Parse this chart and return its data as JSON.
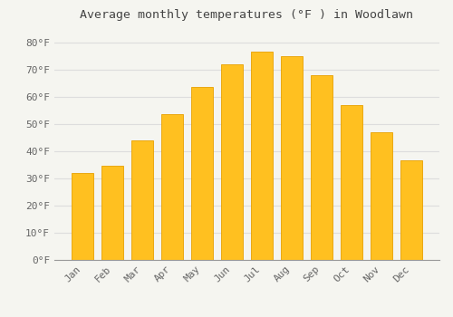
{
  "title": "Average monthly temperatures (°F ) in Woodlawn",
  "months": [
    "Jan",
    "Feb",
    "Mar",
    "Apr",
    "May",
    "Jun",
    "Jul",
    "Aug",
    "Sep",
    "Oct",
    "Nov",
    "Dec"
  ],
  "values": [
    32,
    34.5,
    44,
    53.5,
    63.5,
    72,
    76.5,
    75,
    68,
    57,
    47,
    36.5
  ],
  "bar_color_top": "#FFC020",
  "bar_color_bottom": "#FFB000",
  "bar_edge_color": "#E8A000",
  "background_color": "#F5F5F0",
  "plot_bg_color": "#F5F5F0",
  "grid_color": "#DDDDDD",
  "ylim": [
    0,
    85
  ],
  "yticks": [
    0,
    10,
    20,
    30,
    40,
    50,
    60,
    70,
    80
  ],
  "title_fontsize": 9.5,
  "tick_fontsize": 8,
  "tick_color": "#666666",
  "font_family": "monospace",
  "bar_width": 0.72
}
